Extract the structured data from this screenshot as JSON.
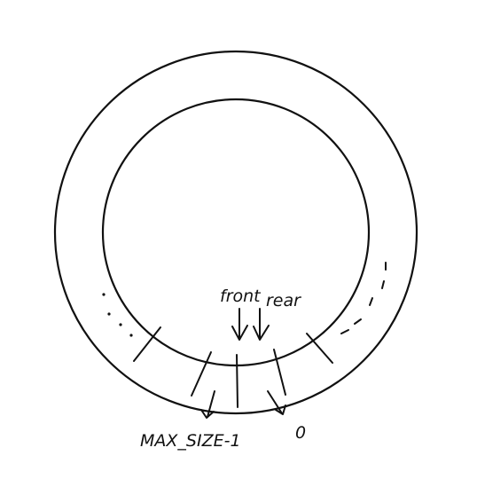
{
  "diagram": {
    "labels": {
      "front": "front",
      "rear": "rear",
      "max_index": "MAX_SIZE-1",
      "zero_index": "0"
    },
    "colors": {
      "stroke": "#111111",
      "background": "#ffffff"
    }
  }
}
